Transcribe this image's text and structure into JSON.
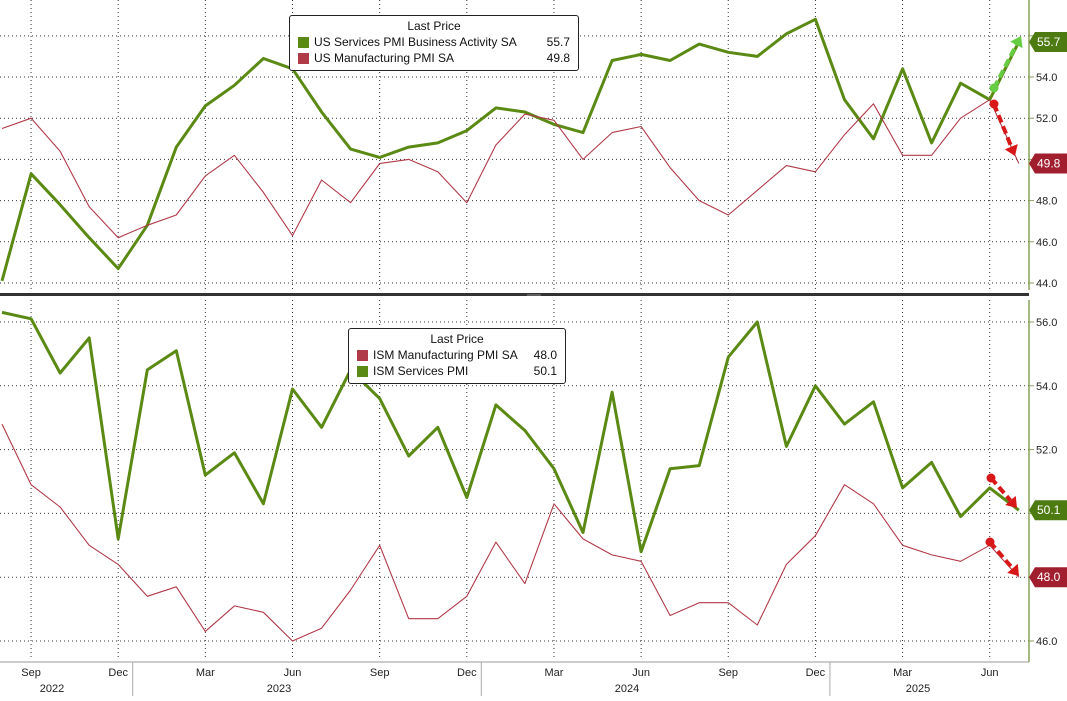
{
  "colors": {
    "green": "#5b8a14",
    "red": "#b03a48",
    "arrow_green": "#66cc44",
    "arrow_red": "#d81818",
    "label_green": "#4e7a12",
    "label_red": "#a01e2e",
    "axis": "#8aa25a",
    "grid": "#333333",
    "divider": "#333333"
  },
  "x_axis": {
    "month_labels": [
      "Sep",
      "Dec",
      "Mar",
      "Jun",
      "Sep",
      "Dec",
      "Mar",
      "Jun",
      "Sep",
      "Dec",
      "Mar",
      "Jun"
    ],
    "year_labels": [
      "2022",
      "2023",
      "2024",
      "2025"
    ]
  },
  "chart_data": [
    {
      "type": "line",
      "panel": "top",
      "legend_title": "Last Price",
      "legend_placement": "top-center",
      "grid": true,
      "x": [
        "2022-08",
        "2022-09",
        "2022-10",
        "2022-11",
        "2022-12",
        "2023-01",
        "2023-02",
        "2023-03",
        "2023-04",
        "2023-05",
        "2023-06",
        "2023-07",
        "2023-08",
        "2023-09",
        "2023-10",
        "2023-11",
        "2023-12",
        "2024-01",
        "2024-02",
        "2024-03",
        "2024-04",
        "2024-05",
        "2024-06",
        "2024-07",
        "2024-08",
        "2024-09",
        "2024-10",
        "2024-11",
        "2024-12",
        "2025-01",
        "2025-02",
        "2025-03",
        "2025-04",
        "2025-05",
        "2025-06",
        "2025-07"
      ],
      "ylim": [
        43.8,
        57.0
      ],
      "yticks": [
        "44.0",
        "46.0",
        "48.0",
        "50.0",
        "52.0",
        "54.0",
        "56.0"
      ],
      "series": [
        {
          "name": "US Services PMI Business Activity SA",
          "last_value": "55.7",
          "color": "green",
          "values": [
            44.1,
            49.3,
            47.8,
            46.2,
            44.7,
            46.8,
            50.6,
            52.6,
            53.6,
            54.9,
            54.4,
            52.3,
            50.5,
            50.1,
            50.6,
            50.8,
            51.4,
            52.5,
            52.3,
            51.7,
            51.3,
            54.8,
            55.1,
            54.8,
            55.6,
            55.2,
            55.0,
            56.1,
            56.8,
            52.9,
            51.0,
            54.4,
            50.8,
            53.7,
            52.9,
            55.7
          ]
        },
        {
          "name": "US Manufacturing PMI SA",
          "last_value": "49.8",
          "color": "red",
          "values": [
            51.5,
            52.0,
            50.4,
            47.7,
            46.2,
            46.8,
            47.3,
            49.2,
            50.2,
            48.4,
            46.3,
            49.0,
            47.9,
            49.8,
            50.0,
            49.4,
            47.9,
            50.7,
            52.2,
            51.9,
            50.0,
            51.3,
            51.6,
            49.6,
            48.0,
            47.3,
            48.5,
            49.7,
            49.4,
            51.2,
            52.7,
            50.2,
            50.2,
            52.0,
            52.9,
            49.8
          ]
        }
      ]
    },
    {
      "type": "line",
      "panel": "bottom",
      "legend_title": "Last Price",
      "legend_placement": "top-center",
      "grid": true,
      "x": [
        "2022-08",
        "2022-09",
        "2022-10",
        "2022-11",
        "2022-12",
        "2023-01",
        "2023-02",
        "2023-03",
        "2023-04",
        "2023-05",
        "2023-06",
        "2023-07",
        "2023-08",
        "2023-09",
        "2023-10",
        "2023-11",
        "2023-12",
        "2024-01",
        "2024-02",
        "2024-03",
        "2024-04",
        "2024-05",
        "2024-06",
        "2024-07",
        "2024-08",
        "2024-09",
        "2024-10",
        "2024-11",
        "2024-12",
        "2025-01",
        "2025-02",
        "2025-03",
        "2025-04",
        "2025-05",
        "2025-06",
        "2025-07"
      ],
      "ylim": [
        45.6,
        56.4
      ],
      "yticks": [
        "46.0",
        "48.0",
        "50.0",
        "52.0",
        "54.0",
        "56.0"
      ],
      "series": [
        {
          "name": "ISM Manufacturing PMI SA",
          "last_value": "48.0",
          "color": "red",
          "values": [
            52.8,
            50.9,
            50.2,
            49.0,
            48.4,
            47.4,
            47.7,
            46.3,
            47.1,
            46.9,
            46.0,
            46.4,
            47.6,
            49.0,
            46.7,
            46.7,
            47.4,
            49.1,
            47.8,
            50.3,
            49.2,
            48.7,
            48.5,
            46.8,
            47.2,
            47.2,
            46.5,
            48.4,
            49.3,
            50.9,
            50.3,
            49.0,
            48.7,
            48.5,
            49.0,
            48.0
          ]
        },
        {
          "name": "ISM Services PMI",
          "last_value": "50.1",
          "color": "green",
          "values": [
            56.3,
            56.1,
            54.4,
            55.5,
            49.2,
            54.5,
            55.1,
            51.2,
            51.9,
            50.3,
            53.9,
            52.7,
            54.5,
            53.6,
            51.8,
            52.7,
            50.5,
            53.4,
            52.6,
            51.4,
            49.4,
            53.8,
            48.8,
            51.4,
            51.5,
            54.9,
            56.0,
            52.1,
            54.0,
            52.8,
            53.5,
            50.8,
            51.6,
            49.9,
            50.8,
            50.1
          ]
        }
      ]
    }
  ]
}
